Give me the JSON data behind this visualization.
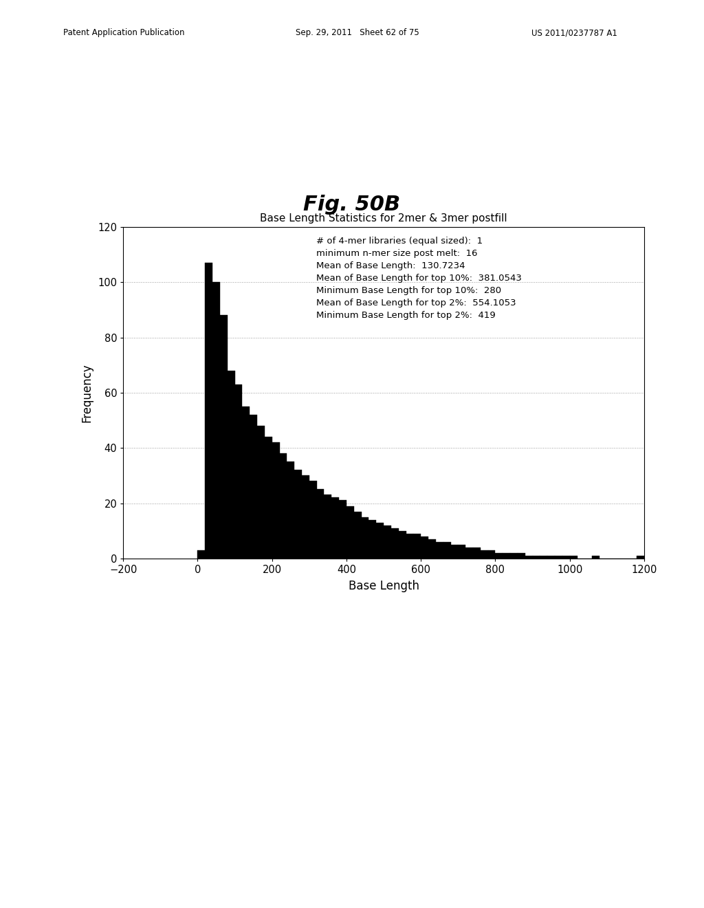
{
  "title": "Fig. 50B",
  "subtitle": "Base Length Statistics for 2mer & 3mer postfill",
  "xlabel": "Base Length",
  "ylabel": "Frequency",
  "xlim": [
    -200,
    1200
  ],
  "ylim": [
    0,
    120
  ],
  "xticks": [
    -200,
    0,
    200,
    400,
    600,
    800,
    1000,
    1200
  ],
  "yticks": [
    0,
    20,
    40,
    60,
    80,
    100,
    120
  ],
  "annotation_lines": [
    "# of 4-mer libraries (equal sized):  1",
    "minimum n-mer size post melt:  16",
    "Mean of Base Length:  130.7234",
    "Mean of Base Length for top 10%:  381.0543",
    "Minimum Base Length for top 10%:  280",
    "Mean of Base Length for top 2%:  554.1053",
    "Minimum Base Length for top 2%:  419"
  ],
  "bar_color": "#000000",
  "background_color": "#ffffff",
  "hist_bin_starts": [
    0,
    20,
    40,
    60,
    80,
    100,
    120,
    140,
    160,
    180,
    200,
    220,
    240,
    260,
    280,
    300,
    320,
    340,
    360,
    380,
    400,
    420,
    440,
    460,
    480,
    500,
    520,
    540,
    560,
    580,
    600,
    620,
    640,
    660,
    680,
    700,
    720,
    740,
    760,
    780,
    800,
    820,
    840,
    860,
    880,
    900,
    920,
    940,
    960,
    980,
    1000,
    1020,
    1040,
    1060,
    1080,
    1100,
    1120,
    1140,
    1160,
    1180
  ],
  "hist_values": [
    3,
    107,
    100,
    88,
    68,
    63,
    55,
    52,
    48,
    44,
    42,
    38,
    35,
    32,
    30,
    28,
    25,
    23,
    22,
    21,
    19,
    17,
    15,
    14,
    13,
    12,
    11,
    10,
    9,
    9,
    8,
    7,
    6,
    6,
    5,
    5,
    4,
    4,
    3,
    3,
    2,
    2,
    2,
    2,
    1,
    1,
    1,
    1,
    1,
    1,
    1,
    0,
    0,
    1,
    0,
    0,
    0,
    0,
    0,
    1
  ],
  "header_left": "Patent Application Publication",
  "header_center": "Sep. 29, 2011   Sheet 62 of 75",
  "header_right": "US 2011/0237787 A1"
}
